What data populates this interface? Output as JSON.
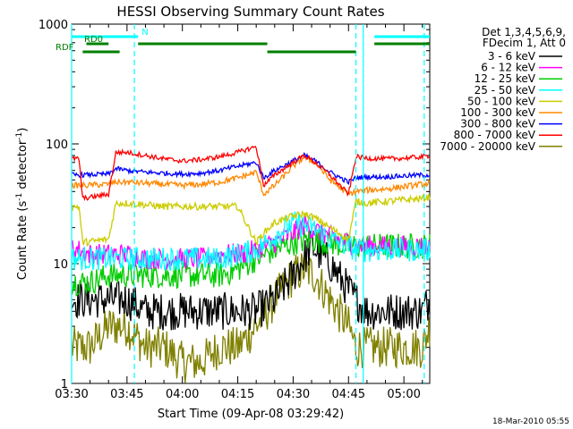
{
  "chart_data": {
    "type": "line",
    "title": "HESSI Observing Summary Count Rates",
    "xlabel": "Start Time (09-Apr-08 03:29:42)",
    "ylabel": "Count Rate (s⁻¹ detector⁻¹)",
    "ylabel_main": "Count Rate (s",
    "ylabel_sup1": "-1",
    "ylabel_mid": " detector",
    "ylabel_sup2": "-1",
    "ylabel_end": ")",
    "yscale": "log",
    "ylim": [
      1,
      1000
    ],
    "xlim_minutes": [
      0,
      97
    ],
    "x_ticks": [
      {
        "m": 0,
        "label": "03:30"
      },
      {
        "m": 15,
        "label": "03:45"
      },
      {
        "m": 30,
        "label": "04:00"
      },
      {
        "m": 45,
        "label": "04:15"
      },
      {
        "m": 60,
        "label": "04:30"
      },
      {
        "m": 75,
        "label": "04:45"
      },
      {
        "m": 90,
        "label": "05:00"
      }
    ],
    "y_ticks": [
      {
        "v": 1,
        "label": "1"
      },
      {
        "v": 10,
        "label": "10"
      },
      {
        "v": 100,
        "label": "100"
      },
      {
        "v": 1000,
        "label": "1000"
      }
    ],
    "legend_header": [
      "Det 1,3,4,5,6,9,",
      "FDecim 1, Att 0"
    ],
    "legend_position": "right",
    "timestamp": "18-Mar-2010 05:55",
    "series": [
      {
        "name": "3 - 6 keV",
        "color": "#000000",
        "x": [
          0,
          5,
          10,
          15,
          20,
          25,
          30,
          35,
          40,
          45,
          50,
          55,
          60,
          65,
          70,
          75,
          77,
          80,
          85,
          90,
          95,
          97
        ],
        "y": [
          5,
          5,
          5,
          5,
          4,
          4,
          4,
          4,
          4,
          4,
          4,
          5,
          8,
          14,
          10,
          6,
          5,
          4,
          4,
          4,
          4,
          5
        ],
        "noise": 0.32
      },
      {
        "name": "6 - 12 keV",
        "color": "#ff00ff",
        "x": [
          0,
          2,
          5,
          10,
          15,
          20,
          25,
          30,
          35,
          40,
          45,
          50,
          55,
          60,
          63,
          66,
          70,
          75,
          77,
          80,
          85,
          90,
          95,
          97
        ],
        "y": [
          14,
          13,
          12,
          12,
          12,
          11,
          11,
          11,
          11,
          12,
          12,
          13,
          15,
          18,
          21,
          19,
          17,
          15,
          14,
          14,
          14,
          14,
          14,
          14
        ],
        "noise": 0.18
      },
      {
        "name": "12 - 25 keV",
        "color": "#00cc00",
        "x": [
          0,
          5,
          10,
          15,
          20,
          25,
          30,
          35,
          40,
          45,
          50,
          55,
          60,
          65,
          70,
          75,
          77,
          80,
          85,
          90,
          95,
          97
        ],
        "y": [
          7,
          7,
          8,
          8,
          8,
          8,
          8,
          8,
          8,
          9,
          11,
          13,
          15,
          16,
          15,
          14,
          14,
          14,
          14,
          14,
          14,
          14
        ],
        "noise": 0.22
      },
      {
        "name": "25 - 50 keV",
        "color": "#00ffff",
        "x": [
          0,
          5,
          10,
          15,
          20,
          25,
          30,
          35,
          40,
          45,
          50,
          55,
          60,
          65,
          70,
          75,
          77,
          80,
          85,
          90,
          95,
          97
        ],
        "y": [
          11,
          11,
          11,
          11,
          11,
          11,
          11,
          11,
          11,
          12,
          13,
          17,
          22,
          20,
          16,
          14,
          13,
          13,
          13,
          13,
          13,
          13
        ],
        "noise": 0.2
      },
      {
        "name": "50 - 100 keV",
        "color": "#cccc00",
        "x": [
          0,
          2,
          3,
          10,
          12,
          15,
          20,
          25,
          30,
          35,
          40,
          45,
          50,
          52,
          55,
          60,
          63,
          66,
          70,
          75,
          77,
          80,
          85,
          90,
          95,
          97
        ],
        "y": [
          30,
          30,
          15,
          16,
          32,
          32,
          31,
          30,
          30,
          30,
          30,
          30,
          15,
          18,
          22,
          25,
          26,
          24,
          20,
          16,
          33,
          32,
          33,
          34,
          35,
          36
        ],
        "noise": 0.06
      },
      {
        "name": "100 - 300 keV",
        "color": "#ff8800",
        "x": [
          0,
          2,
          3,
          10,
          12,
          15,
          20,
          25,
          30,
          35,
          40,
          45,
          50,
          52,
          55,
          60,
          63,
          66,
          70,
          75,
          77,
          80,
          85,
          90,
          95,
          97
        ],
        "y": [
          45,
          45,
          45,
          46,
          48,
          48,
          47,
          46,
          45,
          46,
          48,
          52,
          58,
          38,
          45,
          65,
          78,
          70,
          50,
          38,
          40,
          41,
          42,
          44,
          46,
          47
        ],
        "noise": 0.05
      },
      {
        "name": "300 - 800 keV",
        "color": "#0000ff",
        "x": [
          0,
          2,
          3,
          10,
          12,
          15,
          20,
          25,
          30,
          35,
          40,
          45,
          50,
          52,
          55,
          60,
          63,
          66,
          70,
          75,
          77,
          80,
          85,
          90,
          95,
          97
        ],
        "y": [
          55,
          55,
          55,
          56,
          62,
          60,
          58,
          57,
          56,
          57,
          60,
          65,
          70,
          52,
          60,
          72,
          80,
          72,
          58,
          48,
          52,
          53,
          53,
          54,
          55,
          55
        ],
        "noise": 0.04
      },
      {
        "name": "800 - 7000 keV",
        "color": "#ff0000",
        "x": [
          0,
          2,
          3,
          10,
          12,
          15,
          20,
          25,
          30,
          35,
          40,
          45,
          50,
          52,
          55,
          60,
          63,
          66,
          70,
          75,
          77,
          80,
          85,
          90,
          95,
          97
        ],
        "y": [
          75,
          75,
          35,
          38,
          85,
          85,
          80,
          75,
          72,
          74,
          78,
          85,
          95,
          45,
          55,
          70,
          80,
          70,
          55,
          38,
          78,
          76,
          75,
          76,
          78,
          80
        ],
        "noise": 0.04
      },
      {
        "name": "7000 - 20000 keV",
        "color": "#808000",
        "x": [
          0,
          5,
          10,
          12,
          15,
          20,
          25,
          30,
          35,
          40,
          45,
          50,
          55,
          60,
          63,
          66,
          70,
          75,
          77,
          80,
          85,
          90,
          95,
          97
        ],
        "y": [
          2,
          2,
          3,
          3,
          3,
          2,
          2,
          1.5,
          1.5,
          2,
          2,
          3,
          5,
          8,
          9,
          8,
          5,
          3,
          2,
          2,
          2,
          2,
          2,
          3
        ],
        "noise": 0.35
      }
    ],
    "state_bars": [
      {
        "label": "N",
        "color": "#00ffff",
        "segments": [
          [
            0,
            18
          ],
          [
            82,
            97
          ]
        ]
      },
      {
        "label": "RD0",
        "color": "#008000",
        "segments": [
          [
            4,
            10
          ],
          [
            18,
            53
          ],
          [
            82,
            97
          ]
        ]
      },
      {
        "label": "RDF",
        "color": "#008000",
        "segments": [
          [
            3,
            13
          ],
          [
            53,
            77
          ]
        ]
      }
    ],
    "vlines": [
      {
        "m": 0,
        "style": "solid",
        "color": "#00ffff"
      },
      {
        "m": 17,
        "style": "dashed",
        "color": "#00ffff"
      },
      {
        "m": 77,
        "style": "dashed",
        "color": "#00ffff"
      },
      {
        "m": 79,
        "style": "solid",
        "color": "#00ffff"
      },
      {
        "m": 95.5,
        "style": "dashed",
        "color": "#00ffff"
      }
    ]
  }
}
